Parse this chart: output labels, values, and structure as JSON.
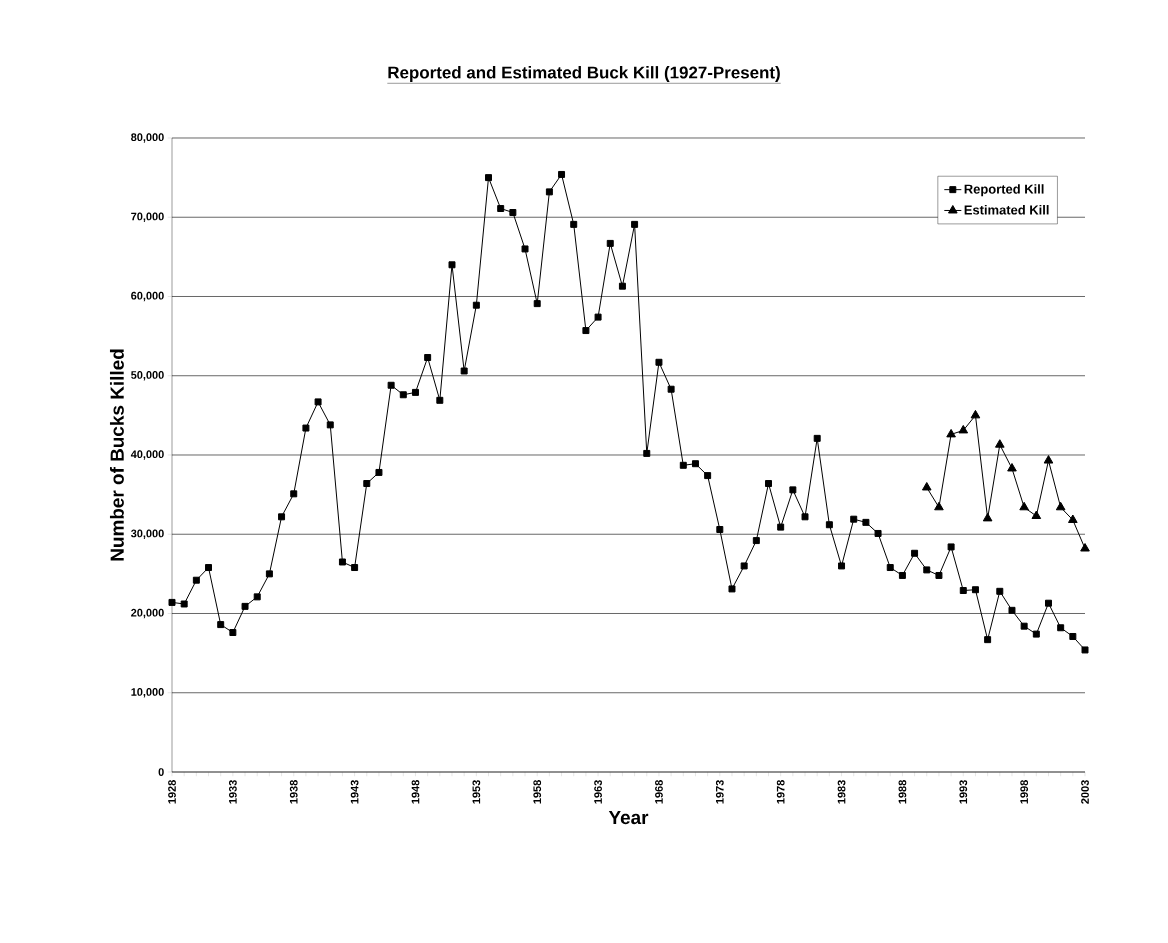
{
  "chart_data": {
    "type": "line",
    "title": "Reported and Estimated Buck Kill (1927-Present)",
    "xlabel": "Year",
    "ylabel": "Number of Bucks Killed",
    "xlim": [
      1928,
      2003
    ],
    "ylim": [
      0,
      80000
    ],
    "xticks": [
      1928,
      {
        "value": 1929,
        "label": null
      },
      {
        "value": 1930,
        "label": null
      },
      {
        "value": 1931,
        "label": null
      },
      {
        "value": 1932,
        "label": null
      },
      1933,
      {
        "value": 1934,
        "label": null
      },
      {
        "value": 1935,
        "label": null
      },
      {
        "value": 1936,
        "label": null
      },
      {
        "value": 1937,
        "label": null
      },
      1938,
      {
        "value": 1939,
        "label": null
      },
      {
        "value": 1940,
        "label": null
      },
      {
        "value": 1941,
        "label": null
      },
      {
        "value": 1942,
        "label": null
      },
      1943,
      {
        "value": 1944,
        "label": null
      },
      {
        "value": 1945,
        "label": null
      },
      {
        "value": 1946,
        "label": null
      },
      {
        "value": 1947,
        "label": null
      },
      1948,
      {
        "value": 1949,
        "label": null
      },
      {
        "value": 1950,
        "label": null
      },
      {
        "value": 1951,
        "label": null
      },
      {
        "value": 1952,
        "label": null
      },
      1953,
      {
        "value": 1954,
        "label": null
      },
      {
        "value": 1955,
        "label": null
      },
      {
        "value": 1956,
        "label": null
      },
      {
        "value": 1957,
        "label": null
      },
      1958,
      {
        "value": 1959,
        "label": null
      },
      {
        "value": 1960,
        "label": null
      },
      {
        "value": 1961,
        "label": null
      },
      {
        "value": 1962,
        "label": null
      },
      1963,
      {
        "value": 1964,
        "label": null
      },
      {
        "value": 1965,
        "label": null
      },
      {
        "value": 1966,
        "label": null
      },
      {
        "value": 1967,
        "label": null
      },
      1968,
      {
        "value": 1969,
        "label": null
      },
      {
        "value": 1970,
        "label": null
      },
      {
        "value": 1971,
        "label": null
      },
      {
        "value": 1972,
        "label": null
      },
      1973,
      {
        "value": 1974,
        "label": null
      },
      {
        "value": 1975,
        "label": null
      },
      {
        "value": 1976,
        "label": null
      },
      {
        "value": 1977,
        "label": null
      },
      1978,
      {
        "value": 1979,
        "label": null
      },
      {
        "value": 1980,
        "label": null
      },
      {
        "value": 1981,
        "label": null
      },
      {
        "value": 1982,
        "label": null
      },
      1983,
      {
        "value": 1984,
        "label": null
      },
      {
        "value": 1985,
        "label": null
      },
      {
        "value": 1986,
        "label": null
      },
      {
        "value": 1987,
        "label": null
      },
      1988,
      {
        "value": 1989,
        "label": null
      },
      {
        "value": 1990,
        "label": null
      },
      {
        "value": 1991,
        "label": null
      },
      {
        "value": 1992,
        "label": null
      },
      1993,
      {
        "value": 1994,
        "label": null
      },
      {
        "value": 1995,
        "label": null
      },
      {
        "value": 1996,
        "label": null
      },
      {
        "value": 1997,
        "label": null
      },
      1998,
      {
        "value": 1999,
        "label": null
      },
      {
        "value": 2000,
        "label": null
      },
      {
        "value": 2001,
        "label": null
      },
      {
        "value": 2002,
        "label": null
      },
      2003
    ],
    "yticks": [
      0,
      {
        "value": 10000,
        "label": "10,000"
      },
      {
        "value": 20000,
        "label": "20,000"
      },
      {
        "value": 30000,
        "label": "30,000"
      },
      {
        "value": 40000,
        "label": "40,000"
      },
      {
        "value": 50000,
        "label": "50,000"
      },
      {
        "value": 60000,
        "label": "60,000"
      },
      {
        "value": 70000,
        "label": "70,000"
      },
      {
        "value": 80000,
        "label": "80,000"
      }
    ],
    "grid": "y",
    "legend": "top right",
    "line_style": "solid",
    "series": [
      {
        "name": "Reported Kill",
        "color": "#000000",
        "marker": "square",
        "x": [
          1928,
          1929,
          1930,
          1931,
          1932,
          1933,
          1934,
          1935,
          1936,
          1937,
          1938,
          1939,
          1940,
          1941,
          1942,
          1943,
          1944,
          1945,
          1946,
          1947,
          1948,
          1949,
          1950,
          1951,
          1952,
          1953,
          1954,
          1955,
          1956,
          1957,
          1958,
          1959,
          1960,
          1961,
          1962,
          1963,
          1964,
          1965,
          1966,
          1967,
          1968,
          1969,
          1970,
          1971,
          1972,
          1973,
          1974,
          1975,
          1976,
          1977,
          1978,
          1979,
          1980,
          1981,
          1982,
          1983,
          1984,
          1985,
          1986,
          1987,
          1988,
          1989,
          1990,
          1991,
          1992,
          1993,
          1994,
          1995,
          1996,
          1997,
          1998,
          1999,
          2000,
          2001,
          2002,
          2003
        ],
        "values": [
          21400,
          21200,
          24200,
          25800,
          18600,
          17600,
          20900,
          22100,
          25000,
          32200,
          35100,
          43400,
          46700,
          43800,
          26500,
          25800,
          36400,
          37800,
          48800,
          47600,
          47900,
          52300,
          46900,
          64000,
          50600,
          58900,
          75000,
          71100,
          70600,
          66000,
          59100,
          73200,
          75400,
          69100,
          55700,
          57400,
          66700,
          61300,
          69100,
          40200,
          51700,
          48300,
          38700,
          38900,
          37400,
          30600,
          23100,
          26000,
          29200,
          36400,
          30900,
          35600,
          32200,
          42100,
          31200,
          26000,
          31900,
          31500,
          30100,
          25800,
          24800,
          27600,
          25500,
          24800,
          28400,
          22900,
          23000,
          16700,
          22800,
          20400,
          18400,
          17400,
          21300,
          18200,
          17100,
          15400
        ]
      },
      {
        "name": "Estimated Kill",
        "color": "#000000",
        "marker": "triangle",
        "x": [
          1990,
          1991,
          1992,
          1993,
          1994,
          1995,
          1996,
          1997,
          1998,
          1999,
          2000,
          2001,
          2002,
          2003
        ],
        "values": [
          35900,
          33400,
          42600,
          43100,
          45000,
          32000,
          41300,
          38300,
          33400,
          32300,
          39300,
          33400,
          31800,
          28200
        ]
      }
    ]
  }
}
